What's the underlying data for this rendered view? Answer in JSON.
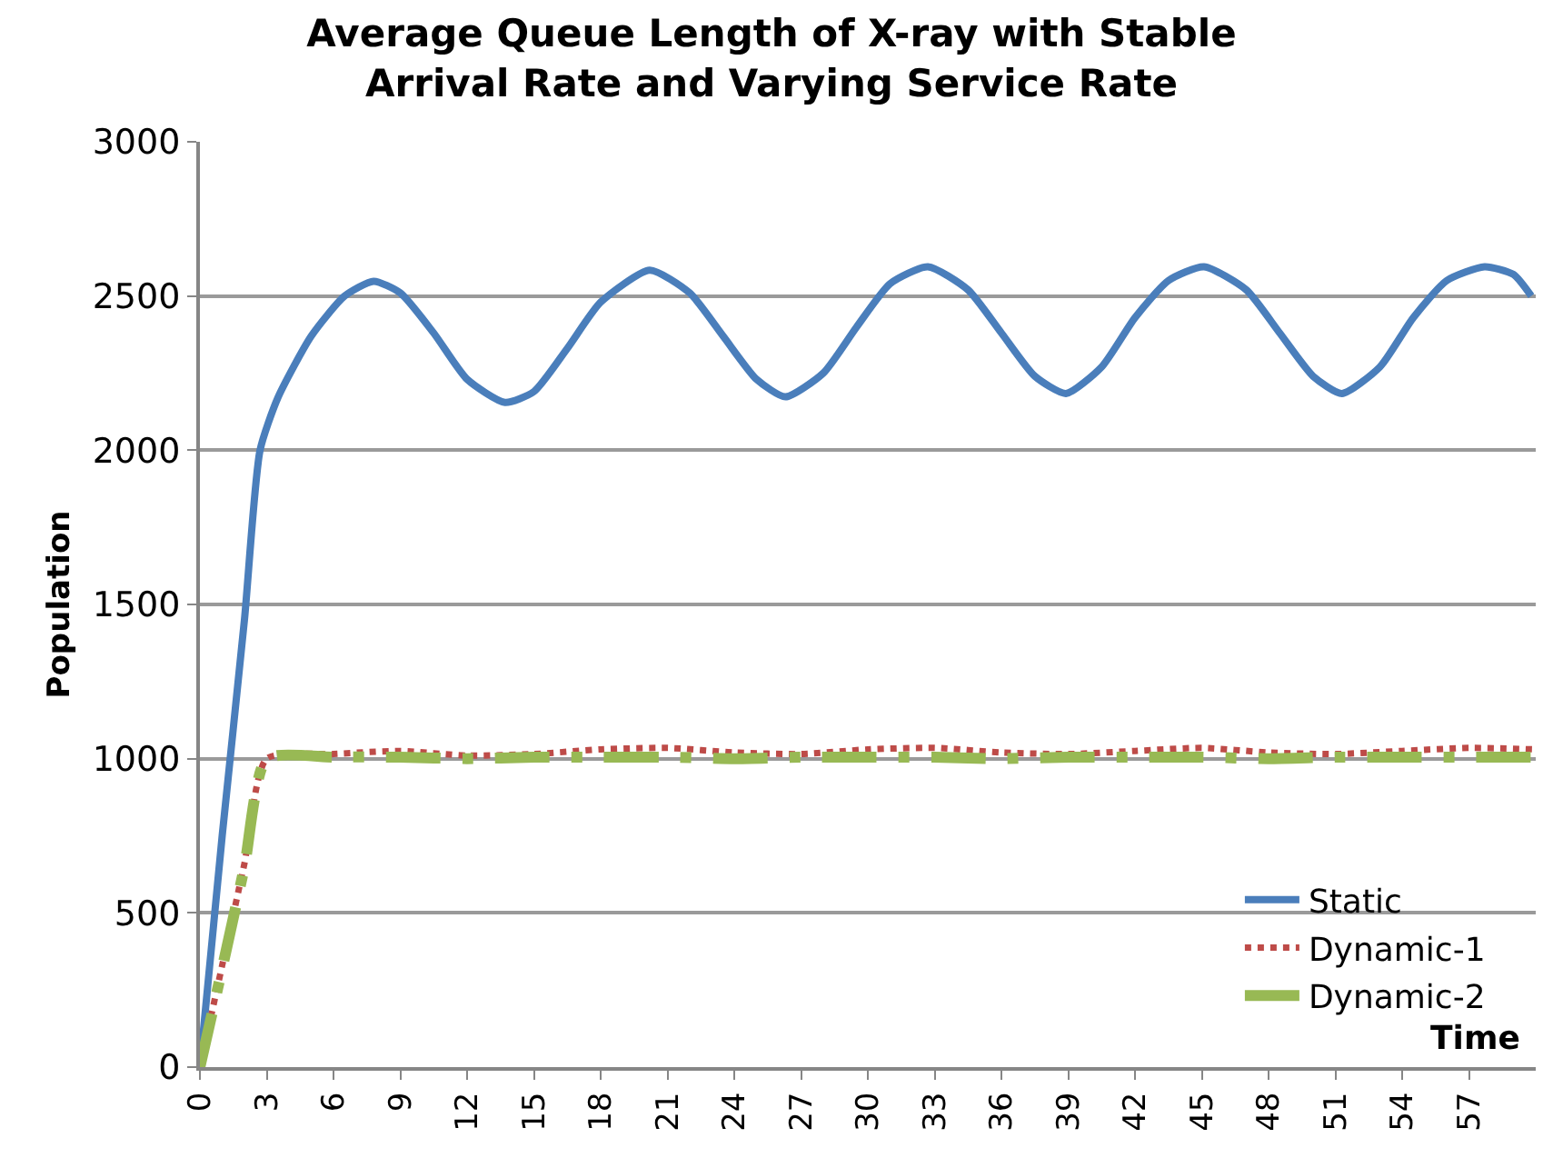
{
  "chart_data": {
    "type": "line",
    "title": "Average Queue Length of X-ray with Stable Arrival Rate and Varying Service Rate",
    "xlabel": "Time",
    "ylabel": "Population",
    "xlim": [
      0,
      60
    ],
    "xticks": [
      0,
      3,
      6,
      9,
      12,
      15,
      18,
      21,
      24,
      27,
      30,
      33,
      36,
      39,
      42,
      45,
      48,
      51,
      54,
      57
    ],
    "ylim": [
      0,
      3000
    ],
    "yticks": [
      0,
      500,
      1000,
      1500,
      2000,
      2500,
      3000
    ],
    "grid": "y",
    "legend": "bottom right",
    "marker": "none",
    "series": [
      {
        "name": "Static",
        "color": "#4a7ebb",
        "line_style": "solid",
        "x": [
          0,
          1,
          2,
          2.7,
          3.5,
          5,
          6.5,
          7.8,
          9,
          10.5,
          12,
          13.7,
          15,
          16.5,
          18,
          20.2,
          22,
          23.5,
          25,
          26.3,
          28,
          29.5,
          31,
          32.7,
          34.5,
          36,
          37.5,
          38.9,
          40.5,
          42,
          43.5,
          45.1,
          47,
          48.5,
          50,
          51.3,
          53,
          54.5,
          56,
          57.7,
          59,
          59.8
        ],
        "values": [
          0,
          750,
          1450,
          2000,
          2170,
          2370,
          2500,
          2548,
          2510,
          2380,
          2230,
          2155,
          2190,
          2330,
          2480,
          2584,
          2510,
          2370,
          2230,
          2173,
          2250,
          2400,
          2540,
          2595,
          2520,
          2380,
          2240,
          2184,
          2270,
          2430,
          2550,
          2595,
          2520,
          2380,
          2240,
          2184,
          2270,
          2430,
          2550,
          2595,
          2570,
          2500
        ]
      },
      {
        "name": "Dynamic-1",
        "color": "#be4b48",
        "line_style": "dotted",
        "x": [
          0,
          1,
          2,
          3,
          6,
          9,
          12,
          15,
          18,
          21,
          24,
          27,
          30,
          33,
          36,
          39,
          42,
          45,
          48,
          51,
          54,
          57,
          60
        ],
        "values": [
          0,
          330,
          660,
          1000,
          1015,
          1025,
          1010,
          1015,
          1030,
          1035,
          1020,
          1015,
          1030,
          1035,
          1020,
          1015,
          1025,
          1035,
          1020,
          1015,
          1025,
          1035,
          1030
        ]
      },
      {
        "name": "Dynamic-2",
        "color": "#98b954",
        "line_style": "dashed",
        "x": [
          0,
          1,
          2,
          3,
          6,
          9,
          12,
          15,
          18,
          21,
          24,
          27,
          30,
          33,
          36,
          39,
          42,
          45,
          48,
          51,
          54,
          57,
          60
        ],
        "values": [
          0,
          320,
          650,
          1000,
          1005,
          1005,
          1000,
          1005,
          1005,
          1005,
          1000,
          1005,
          1005,
          1005,
          1000,
          1005,
          1005,
          1005,
          1000,
          1005,
          1005,
          1005,
          1005
        ]
      }
    ]
  }
}
